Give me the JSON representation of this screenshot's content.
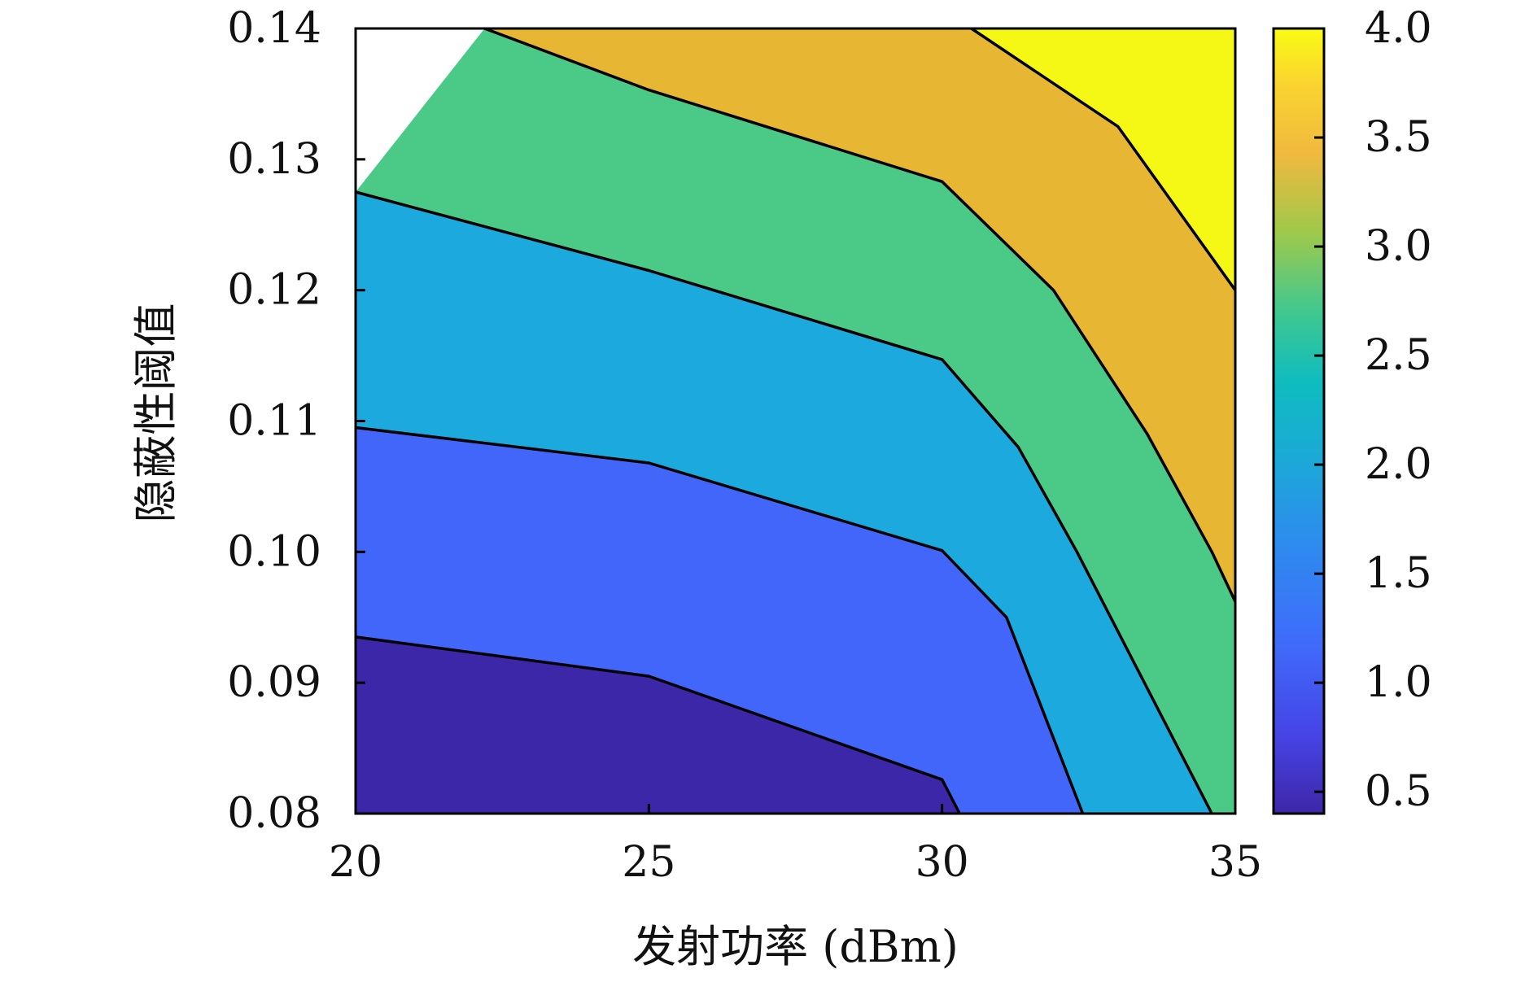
{
  "chart_data": {
    "type": "contourf",
    "xlabel": "发射功率 (dBm)",
    "ylabel": "隐蔽性阈值",
    "xlim": [
      20,
      35
    ],
    "ylim": [
      0.08,
      0.14
    ],
    "xticks": [
      "20",
      "25",
      "30",
      "35"
    ],
    "yticks": [
      "0.08",
      "0.09",
      "0.10",
      "0.11",
      "0.12",
      "0.13",
      "0.14"
    ],
    "colorbar": {
      "range": [
        0.4,
        4.0
      ],
      "ticks": [
        "0.5",
        "1.0",
        "1.5",
        "2.0",
        "2.5",
        "3.0",
        "3.5",
        "4.0"
      ],
      "colormap": "parula"
    },
    "grid": false,
    "levels": [
      {
        "level": 0.5,
        "color": "#3b27a8"
      },
      {
        "level": 1.0,
        "color": "#4266fa"
      },
      {
        "level": 1.5,
        "color": "#1ca9de"
      },
      {
        "level": 2.5,
        "color": "#4bc987"
      },
      {
        "level": 3.5,
        "color": "#e7b734"
      },
      {
        "level": 4.0,
        "color": "#f5f814"
      }
    ],
    "contour_lines": [
      {
        "name": "1.0",
        "points": [
          [
            20,
            0.0935
          ],
          [
            25,
            0.0905
          ],
          [
            30,
            0.0826
          ],
          [
            30.3,
            0.08
          ]
        ]
      },
      {
        "name": "1.5",
        "points": [
          [
            20,
            0.1095
          ],
          [
            25,
            0.1068
          ],
          [
            30,
            0.1001
          ],
          [
            31.1,
            0.095
          ],
          [
            32.4,
            0.08
          ]
        ]
      },
      {
        "name": "2.5",
        "points": [
          [
            20,
            0.1275
          ],
          [
            25,
            0.1215
          ],
          [
            30,
            0.1147
          ],
          [
            31.3,
            0.108
          ],
          [
            32.3,
            0.1
          ],
          [
            34.6,
            0.08
          ]
        ]
      },
      {
        "name": "3.5",
        "points": [
          [
            22.2,
            0.14
          ],
          [
            25,
            0.1353
          ],
          [
            30,
            0.1283
          ],
          [
            31.9,
            0.12
          ],
          [
            33.5,
            0.109
          ],
          [
            34.6,
            0.1
          ],
          [
            35,
            0.0962
          ]
        ]
      },
      {
        "name": "4.0",
        "points": [
          [
            30.5,
            0.14
          ],
          [
            33.0,
            0.1325
          ],
          [
            35,
            0.12
          ]
        ]
      }
    ]
  }
}
